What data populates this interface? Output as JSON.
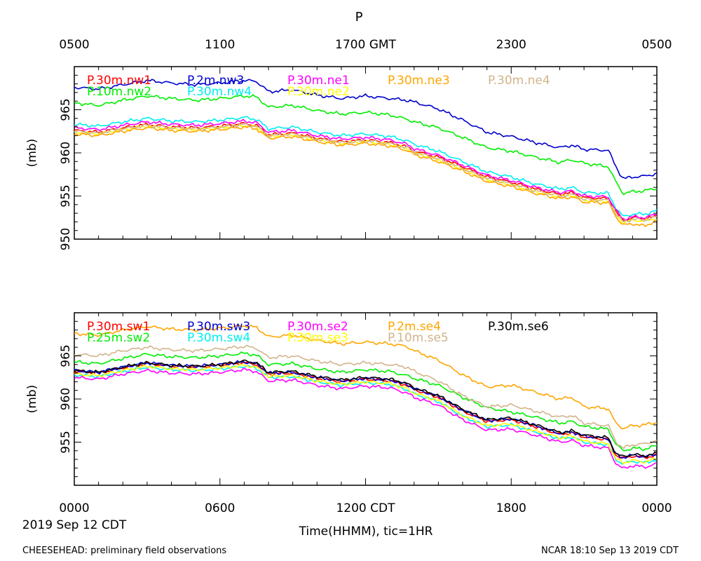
{
  "chart_data": {
    "type": "line",
    "title": "P",
    "top_axis": {
      "tick_labels": [
        "0500",
        "1100",
        "1700 GMT",
        "2300",
        "0500"
      ],
      "tick_hours": [
        0,
        6,
        12,
        18,
        24
      ]
    },
    "bottom_axis": {
      "tick_labels": [
        "0000",
        "0600",
        "1200 CDT",
        "1800",
        "0000"
      ],
      "tick_hours": [
        0,
        6,
        12,
        18,
        24
      ]
    },
    "xlabel": "Time(HHMM), tic=1HR",
    "date_label": "2019 Sep 12 CDT",
    "x_range_hours": [
      0,
      24
    ],
    "footer_left": "CHEESEHEAD: preliminary field observations",
    "footer_right": "NCAR 18:10 Sep 13 2019 CDT",
    "panels": [
      {
        "id": "top",
        "ylabel": "(mb)",
        "ylim": [
          950,
          970
        ],
        "yticks": [
          950,
          955,
          960,
          965
        ],
        "ytick_labels": [
          "950",
          "955",
          "960",
          "965"
        ],
        "base_hours": [
          0,
          1,
          2,
          3,
          4,
          5,
          6,
          7,
          7.5,
          8,
          9,
          10,
          11,
          12,
          13,
          13.7,
          14,
          15,
          16,
          17,
          18,
          19,
          20,
          20.5,
          21,
          22,
          22.3,
          22.6,
          23,
          23.5,
          24
        ],
        "series": [
          {
            "name": "P.30m.nw1",
            "color": "#ff0000",
            "values": [
              962.6,
              962.4,
              962.9,
              963.3,
              963.0,
              962.9,
              963.1,
              963.4,
              963.2,
              962.1,
              962.3,
              961.7,
              961.3,
              961.5,
              961.2,
              960.7,
              960.2,
              959.5,
              958.4,
              957.2,
              956.6,
              955.8,
              955.2,
              955.4,
              954.8,
              954.7,
              953.2,
              952.1,
              952.5,
              952.4,
              952.6
            ]
          },
          {
            "name": "P.10m.nw2",
            "color": "#00ee00",
            "values": [
              965.8,
              965.5,
              966.1,
              966.6,
              966.3,
              966.1,
              966.3,
              966.6,
              966.5,
              965.3,
              965.5,
              964.9,
              964.5,
              964.7,
              964.4,
              963.9,
              963.6,
              962.9,
              961.8,
              960.6,
              960.2,
              959.5,
              958.9,
              959.2,
              958.8,
              958.4,
              956.7,
              955.3,
              955.5,
              955.6,
              955.9
            ]
          },
          {
            "name": "P.2m.nw3",
            "color": "#0000cc",
            "values": [
              967.6,
              967.4,
              967.9,
              968.4,
              968.1,
              967.9,
              968.1,
              968.4,
              968.3,
              967.1,
              967.3,
              966.7,
              966.3,
              966.6,
              966.3,
              966.1,
              965.9,
              965.1,
              963.8,
              962.4,
              961.9,
              961.2,
              960.6,
              960.9,
              960.4,
              960.3,
              958.5,
              957.0,
              957.2,
              957.3,
              957.6
            ]
          },
          {
            "name": "P.30m.nw4",
            "color": "#00eeee",
            "values": [
              963.3,
              963.1,
              963.6,
              964.0,
              963.7,
              963.6,
              963.8,
              964.1,
              963.9,
              962.8,
              963.0,
              962.4,
              962.0,
              962.2,
              961.9,
              961.4,
              961.0,
              960.2,
              959.0,
              957.8,
              957.2,
              956.4,
              955.8,
              956.0,
              955.4,
              955.3,
              953.7,
              952.6,
              952.9,
              952.9,
              953.3
            ]
          },
          {
            "name": "P.30m.ne1",
            "color": "#ff00ff",
            "values": [
              962.9,
              962.7,
              963.2,
              963.6,
              963.3,
              963.2,
              963.4,
              963.7,
              963.5,
              962.4,
              962.6,
              962.0,
              961.6,
              961.8,
              961.5,
              961.0,
              960.5,
              959.7,
              958.6,
              957.4,
              956.8,
              956.0,
              955.4,
              955.6,
              955.0,
              954.9,
              953.4,
              952.3,
              952.6,
              952.5,
              952.9
            ]
          },
          {
            "name": "P.30m.ne2",
            "color": "#ffff00",
            "values": [
              962.4,
              962.2,
              962.7,
              963.1,
              962.8,
              962.7,
              962.9,
              963.2,
              963.0,
              961.9,
              962.1,
              961.5,
              961.1,
              961.3,
              961.0,
              960.5,
              960.0,
              959.2,
              958.1,
              956.9,
              956.3,
              955.5,
              954.9,
              955.1,
              954.5,
              954.4,
              952.9,
              951.9,
              952.2,
              952.1,
              952.4
            ]
          },
          {
            "name": "P.30m.ne3",
            "color": "#ffa500",
            "values": [
              962.2,
              962.0,
              962.5,
              962.9,
              962.6,
              962.5,
              962.7,
              963.0,
              962.8,
              961.7,
              961.9,
              961.3,
              960.9,
              961.1,
              960.8,
              960.3,
              959.8,
              959.0,
              957.9,
              956.7,
              956.1,
              955.3,
              954.7,
              954.9,
              954.3,
              954.2,
              952.7,
              951.6,
              951.8,
              951.5,
              952.2
            ]
          },
          {
            "name": "P.30m.ne4",
            "color": "#d2b48c",
            "values": [
              962.5,
              962.3,
              962.8,
              963.2,
              962.9,
              962.8,
              963.0,
              963.3,
              963.1,
              962.0,
              962.2,
              961.6,
              961.2,
              961.4,
              961.1,
              960.6,
              960.1,
              959.3,
              958.2,
              957.0,
              956.4,
              955.6,
              955.0,
              955.2,
              954.6,
              954.5,
              953.0,
              952.0,
              952.3,
              952.2,
              952.6
            ]
          }
        ],
        "legend": [
          {
            "label": "P.30m.nw1",
            "color": "#ff0000"
          },
          {
            "label": "P.2m.nw3",
            "color": "#0000cc"
          },
          {
            "label": "P.30m.ne1",
            "color": "#ff00ff"
          },
          {
            "label": "P.30m.ne3",
            "color": "#ffa500"
          },
          {
            "label": "P.30m.ne4",
            "color": "#d2b48c"
          },
          {
            "label": "P.10m.nw2",
            "color": "#00ee00"
          },
          {
            "label": "P.30m.nw4",
            "color": "#00eeee"
          },
          {
            "label": "P.30m.ne2",
            "color": "#ffff00"
          }
        ]
      },
      {
        "id": "bottom",
        "ylabel": "(mb)",
        "ylim": [
          950,
          970
        ],
        "yticks": [
          955,
          960,
          965
        ],
        "ytick_labels": [
          "955",
          "960",
          "965"
        ],
        "base_hours": [
          0,
          1,
          2,
          3,
          4,
          5,
          6,
          7,
          7.5,
          8,
          9,
          10,
          11,
          12,
          13,
          13.7,
          14,
          15,
          16,
          17,
          18,
          19,
          20,
          20.5,
          21,
          22,
          22.3,
          22.6,
          23,
          23.5,
          24
        ],
        "series": [
          {
            "name": "P.30m.sw1",
            "color": "#ff0000",
            "values": [
              963.2,
              963.0,
              963.6,
              964.1,
              963.8,
              963.7,
              963.9,
              964.2,
              964.0,
              962.9,
              963.0,
              962.4,
              962.0,
              962.3,
              962.1,
              961.6,
              961.1,
              960.2,
              958.6,
              957.4,
              957.6,
              956.8,
              955.9,
              956.1,
              955.6,
              955.3,
              953.5,
              953.1,
              953.4,
              953.2,
              953.5
            ]
          },
          {
            "name": "P.25m.sw2",
            "color": "#00ee00",
            "values": [
              964.3,
              964.1,
              964.7,
              965.2,
              964.9,
              964.8,
              965.0,
              965.3,
              965.1,
              964.0,
              964.1,
              963.5,
              963.1,
              963.4,
              963.2,
              962.7,
              962.4,
              961.6,
              960.2,
              959.0,
              958.5,
              957.9,
              957.2,
              957.4,
              956.8,
              956.5,
              954.8,
              954.0,
              954.3,
              954.2,
              954.6
            ]
          },
          {
            "name": "P.30m.sw3",
            "color": "#0000cc",
            "values": [
              963.3,
              963.1,
              963.7,
              964.2,
              963.9,
              963.8,
              964.0,
              964.3,
              964.1,
              963.0,
              963.1,
              962.5,
              962.1,
              962.4,
              962.2,
              961.7,
              961.2,
              960.3,
              958.7,
              957.5,
              957.7,
              956.9,
              956.0,
              956.2,
              955.7,
              955.4,
              953.6,
              953.2,
              953.5,
              953.3,
              953.6
            ]
          },
          {
            "name": "P.30m.sw4",
            "color": "#00eeee",
            "values": [
              962.8,
              962.6,
              963.2,
              963.7,
              963.4,
              963.3,
              963.5,
              963.8,
              963.6,
              962.5,
              962.6,
              962.0,
              961.6,
              961.9,
              961.7,
              961.1,
              960.6,
              959.7,
              958.0,
              956.8,
              957.0,
              956.2,
              955.4,
              955.6,
              955.0,
              954.7,
              953.0,
              952.5,
              952.8,
              952.6,
              953.0
            ]
          },
          {
            "name": "P.30m.se2",
            "color": "#ff00ff",
            "values": [
              962.5,
              962.3,
              962.9,
              963.3,
              963.0,
              962.9,
              963.1,
              963.4,
              963.2,
              962.1,
              962.2,
              961.6,
              961.2,
              961.5,
              961.3,
              960.7,
              960.2,
              959.3,
              957.6,
              956.4,
              956.5,
              955.8,
              955.0,
              955.2,
              954.6,
              954.3,
              952.6,
              951.9,
              952.3,
              952.1,
              952.5
            ]
          },
          {
            "name": "P.30m.se3",
            "color": "#ffff00",
            "values": [
              962.9,
              962.7,
              963.3,
              963.8,
              963.5,
              963.4,
              963.6,
              963.9,
              963.7,
              962.6,
              962.7,
              962.1,
              961.7,
              962.0,
              961.8,
              961.2,
              960.7,
              959.8,
              958.1,
              956.9,
              957.1,
              956.3,
              955.5,
              955.7,
              955.1,
              954.8,
              953.1,
              952.6,
              952.9,
              952.7,
              953.1
            ]
          },
          {
            "name": "P.2m.se4",
            "color": "#ffa500",
            "values": [
              967.6,
              967.4,
              968.0,
              968.4,
              968.1,
              968.0,
              968.2,
              968.5,
              968.3,
              967.2,
              967.4,
              966.8,
              966.4,
              966.6,
              966.4,
              966.1,
              965.6,
              964.5,
              962.8,
              961.4,
              961.6,
              960.8,
              960.0,
              960.2,
              959.1,
              958.9,
              957.2,
              956.6,
              956.9,
              957.0,
              957.3
            ]
          },
          {
            "name": "P.10m.se5",
            "color": "#d2b48c",
            "values": [
              965.2,
              965.0,
              965.6,
              966.0,
              965.7,
              965.6,
              965.8,
              966.1,
              965.9,
              964.8,
              965.0,
              964.4,
              964.0,
              964.2,
              964.0,
              963.7,
              963.2,
              962.1,
              960.4,
              959.1,
              959.3,
              958.6,
              957.9,
              958.1,
              957.2,
              956.9,
              955.1,
              954.3,
              954.7,
              954.8,
              955.2
            ]
          },
          {
            "name": "P.30m.se6",
            "color": "#000000",
            "values": [
              963.3,
              963.1,
              963.7,
              964.2,
              963.9,
              963.8,
              964.0,
              964.4,
              964.2,
              963.1,
              963.2,
              962.6,
              962.2,
              962.5,
              962.3,
              961.8,
              961.3,
              960.4,
              958.8,
              957.6,
              957.8,
              957.0,
              956.1,
              956.3,
              955.8,
              955.5,
              953.7,
              953.3,
              953.6,
              953.4,
              953.7
            ]
          }
        ],
        "legend": [
          {
            "label": "P.30m.sw1",
            "color": "#ff0000"
          },
          {
            "label": "P.30m.sw3",
            "color": "#0000cc"
          },
          {
            "label": "P.30m.se2",
            "color": "#ff00ff"
          },
          {
            "label": "P.2m.se4",
            "color": "#ffa500"
          },
          {
            "label": "P.30m.se6",
            "color": "#000000"
          },
          {
            "label": "P.25m.sw2",
            "color": "#00ee00"
          },
          {
            "label": "P.30m.sw4",
            "color": "#00eeee"
          },
          {
            "label": "P.30m.se3",
            "color": "#ffff00"
          },
          {
            "label": "P.10m.se5",
            "color": "#d2b48c"
          }
        ]
      }
    ]
  }
}
